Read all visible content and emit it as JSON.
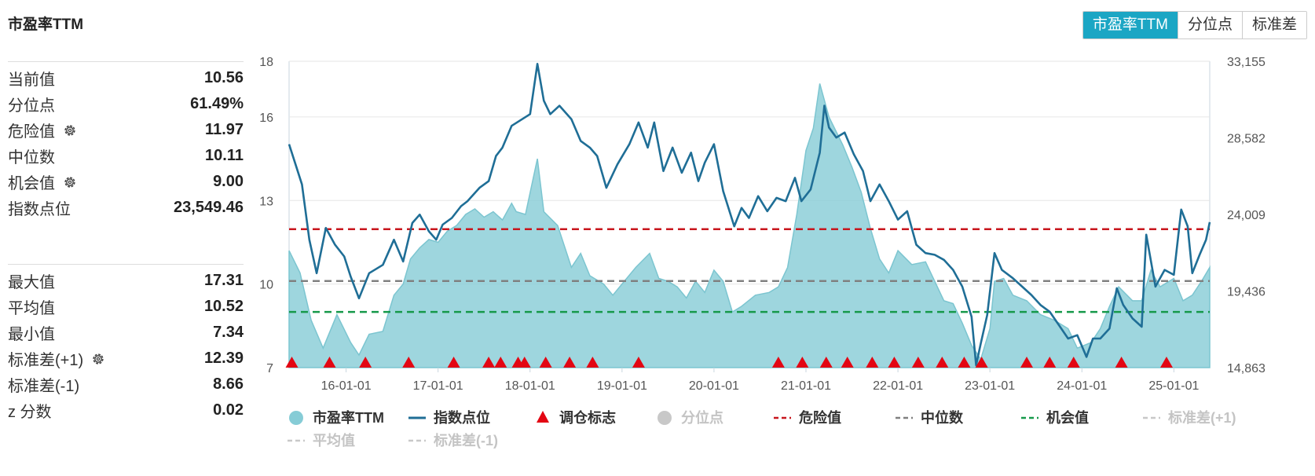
{
  "header": {
    "title": "市盈率TTM"
  },
  "tabs": [
    {
      "label": "市盈率TTM",
      "active": true
    },
    {
      "label": "分位点",
      "active": false
    },
    {
      "label": "标准差",
      "active": false
    }
  ],
  "stats_top": [
    {
      "label": "当前值",
      "value": "10.56",
      "gear": false
    },
    {
      "label": "分位点",
      "value": "61.49%",
      "gear": false
    },
    {
      "label": "危险值",
      "value": "11.97",
      "gear": true
    },
    {
      "label": "中位数",
      "value": "10.11",
      "gear": false
    },
    {
      "label": "机会值",
      "value": "9.00",
      "gear": true
    },
    {
      "label": "指数点位",
      "value": "23,549.46",
      "gear": false
    }
  ],
  "stats_bottom": [
    {
      "label": "最大值",
      "value": "17.31",
      "gear": false
    },
    {
      "label": "平均值",
      "value": "10.52",
      "gear": false
    },
    {
      "label": "最小值",
      "value": "7.34",
      "gear": false
    },
    {
      "label": "标准差(+1)",
      "value": "12.39",
      "gear": true
    },
    {
      "label": "标准差(-1)",
      "value": "8.66",
      "gear": false
    },
    {
      "label": "z 分数",
      "value": "0.02",
      "gear": false
    }
  ],
  "colors": {
    "area": "#86ccd6",
    "index_line": "#1f6e96",
    "danger": "#c8161d",
    "median": "#808080",
    "opportunity": "#16994a",
    "marker": "#e30613",
    "disabled": "#c8c8c8",
    "accent": "#1ba6c4"
  },
  "chart_data": {
    "type": "area+line",
    "x_tick_labels": [
      "16-01-01",
      "17-01-01",
      "18-01-01",
      "19-01-01",
      "20-01-01",
      "21-01-01",
      "22-01-01",
      "23-01-01",
      "24-01-01",
      "25-01-01"
    ],
    "x_tick_years": [
      2016,
      2017,
      2018,
      2019,
      2020,
      2021,
      2022,
      2023,
      2024,
      2025
    ],
    "x_range": [
      2015.38,
      2025.39
    ],
    "left_axis": {
      "ticks": [
        "18",
        "16",
        "13",
        "10",
        "7"
      ],
      "range": [
        7,
        18
      ]
    },
    "right_axis": {
      "ticks": [
        "33,155",
        "28,582",
        "24,009",
        "19,436",
        "14,863"
      ],
      "range": [
        14863,
        33155
      ]
    },
    "reference_lines": {
      "danger": 11.97,
      "median": 10.11,
      "opportunity": 9.0
    },
    "series_pe": {
      "name": "市盈率TTM",
      "points": [
        [
          2015.38,
          11.2
        ],
        [
          2015.5,
          10.4
        ],
        [
          2015.62,
          8.7
        ],
        [
          2015.75,
          7.7
        ],
        [
          2015.9,
          8.9
        ],
        [
          2016.05,
          7.9
        ],
        [
          2016.14,
          7.45
        ],
        [
          2016.25,
          8.2
        ],
        [
          2016.4,
          8.3
        ],
        [
          2016.52,
          9.6
        ],
        [
          2016.62,
          10.0
        ],
        [
          2016.7,
          10.9
        ],
        [
          2016.8,
          11.3
        ],
        [
          2016.9,
          11.6
        ],
        [
          2017.0,
          11.5
        ],
        [
          2017.1,
          11.9
        ],
        [
          2017.2,
          12.1
        ],
        [
          2017.3,
          12.5
        ],
        [
          2017.4,
          12.7
        ],
        [
          2017.5,
          12.4
        ],
        [
          2017.6,
          12.6
        ],
        [
          2017.7,
          12.3
        ],
        [
          2017.8,
          12.9
        ],
        [
          2017.85,
          12.6
        ],
        [
          2017.95,
          12.5
        ],
        [
          2018.08,
          14.5
        ],
        [
          2018.15,
          12.6
        ],
        [
          2018.3,
          12.1
        ],
        [
          2018.45,
          10.6
        ],
        [
          2018.55,
          11.1
        ],
        [
          2018.65,
          10.3
        ],
        [
          2018.8,
          10.0
        ],
        [
          2018.9,
          9.6
        ],
        [
          2019.0,
          10.0
        ],
        [
          2019.15,
          10.6
        ],
        [
          2019.3,
          11.1
        ],
        [
          2019.4,
          10.2
        ],
        [
          2019.5,
          10.1
        ],
        [
          2019.6,
          9.9
        ],
        [
          2019.7,
          9.5
        ],
        [
          2019.8,
          10.1
        ],
        [
          2019.9,
          9.7
        ],
        [
          2020.0,
          10.5
        ],
        [
          2020.1,
          10.1
        ],
        [
          2020.2,
          9.0
        ],
        [
          2020.3,
          9.2
        ],
        [
          2020.45,
          9.6
        ],
        [
          2020.6,
          9.7
        ],
        [
          2020.7,
          9.9
        ],
        [
          2020.8,
          10.6
        ],
        [
          2020.9,
          12.5
        ],
        [
          2021.0,
          14.8
        ],
        [
          2021.08,
          15.6
        ],
        [
          2021.15,
          17.2
        ],
        [
          2021.25,
          16.0
        ],
        [
          2021.4,
          15.0
        ],
        [
          2021.5,
          14.2
        ],
        [
          2021.6,
          13.3
        ],
        [
          2021.7,
          12.0
        ],
        [
          2021.8,
          10.9
        ],
        [
          2021.9,
          10.4
        ],
        [
          2022.0,
          11.2
        ],
        [
          2022.15,
          10.7
        ],
        [
          2022.3,
          10.8
        ],
        [
          2022.4,
          10.1
        ],
        [
          2022.5,
          9.4
        ],
        [
          2022.6,
          9.3
        ],
        [
          2022.7,
          8.6
        ],
        [
          2022.8,
          7.8
        ],
        [
          2022.9,
          7.3
        ],
        [
          2023.0,
          8.4
        ],
        [
          2023.05,
          10.1
        ],
        [
          2023.15,
          10.2
        ],
        [
          2023.25,
          9.6
        ],
        [
          2023.4,
          9.4
        ],
        [
          2023.55,
          8.9
        ],
        [
          2023.7,
          8.7
        ],
        [
          2023.85,
          8.4
        ],
        [
          2023.95,
          7.7
        ],
        [
          2024.1,
          7.9
        ],
        [
          2024.2,
          8.4
        ],
        [
          2024.3,
          9.2
        ],
        [
          2024.4,
          9.9
        ],
        [
          2024.55,
          9.4
        ],
        [
          2024.65,
          9.4
        ],
        [
          2024.75,
          10.5
        ],
        [
          2024.85,
          9.9
        ],
        [
          2025.0,
          10.2
        ],
        [
          2025.1,
          9.4
        ],
        [
          2025.2,
          9.6
        ],
        [
          2025.3,
          10.1
        ],
        [
          2025.39,
          10.6
        ]
      ]
    },
    "series_index": {
      "name": "指数点位",
      "points": [
        [
          2015.38,
          28200
        ],
        [
          2015.45,
          27000
        ],
        [
          2015.52,
          25800
        ],
        [
          2015.6,
          22500
        ],
        [
          2015.68,
          20500
        ],
        [
          2015.78,
          23200
        ],
        [
          2015.88,
          22200
        ],
        [
          2015.98,
          21500
        ],
        [
          2016.05,
          20300
        ],
        [
          2016.14,
          19000
        ],
        [
          2016.25,
          20500
        ],
        [
          2016.4,
          21000
        ],
        [
          2016.52,
          22500
        ],
        [
          2016.62,
          21200
        ],
        [
          2016.72,
          23500
        ],
        [
          2016.8,
          24000
        ],
        [
          2016.9,
          23000
        ],
        [
          2016.98,
          22500
        ],
        [
          2017.05,
          23400
        ],
        [
          2017.15,
          23800
        ],
        [
          2017.25,
          24500
        ],
        [
          2017.32,
          24800
        ],
        [
          2017.45,
          25600
        ],
        [
          2017.55,
          26000
        ],
        [
          2017.63,
          27500
        ],
        [
          2017.7,
          28000
        ],
        [
          2017.8,
          29300
        ],
        [
          2018.0,
          30000
        ],
        [
          2018.08,
          33000
        ],
        [
          2018.15,
          30800
        ],
        [
          2018.22,
          30000
        ],
        [
          2018.32,
          30500
        ],
        [
          2018.45,
          29700
        ],
        [
          2018.55,
          28400
        ],
        [
          2018.65,
          28000
        ],
        [
          2018.73,
          27500
        ],
        [
          2018.83,
          25600
        ],
        [
          2018.95,
          27000
        ],
        [
          2019.08,
          28200
        ],
        [
          2019.18,
          29500
        ],
        [
          2019.28,
          28000
        ],
        [
          2019.35,
          29500
        ],
        [
          2019.45,
          26600
        ],
        [
          2019.55,
          28000
        ],
        [
          2019.65,
          26500
        ],
        [
          2019.75,
          27700
        ],
        [
          2019.83,
          26000
        ],
        [
          2019.9,
          27100
        ],
        [
          2020.0,
          28200
        ],
        [
          2020.1,
          25400
        ],
        [
          2020.22,
          23300
        ],
        [
          2020.3,
          24400
        ],
        [
          2020.38,
          23800
        ],
        [
          2020.48,
          25100
        ],
        [
          2020.58,
          24200
        ],
        [
          2020.68,
          25000
        ],
        [
          2020.78,
          24800
        ],
        [
          2020.88,
          26200
        ],
        [
          2020.95,
          24800
        ],
        [
          2021.05,
          25500
        ],
        [
          2021.15,
          27700
        ],
        [
          2021.2,
          30500
        ],
        [
          2021.25,
          29200
        ],
        [
          2021.33,
          28600
        ],
        [
          2021.42,
          28900
        ],
        [
          2021.52,
          27600
        ],
        [
          2021.62,
          26600
        ],
        [
          2021.7,
          24800
        ],
        [
          2021.8,
          25800
        ],
        [
          2021.9,
          24800
        ],
        [
          2022.0,
          23700
        ],
        [
          2022.1,
          24200
        ],
        [
          2022.2,
          22200
        ],
        [
          2022.3,
          21700
        ],
        [
          2022.4,
          21600
        ],
        [
          2022.5,
          21300
        ],
        [
          2022.6,
          20700
        ],
        [
          2022.7,
          19700
        ],
        [
          2022.8,
          17900
        ],
        [
          2022.85,
          15000
        ],
        [
          2022.9,
          16300
        ],
        [
          2022.97,
          18000
        ],
        [
          2023.05,
          21700
        ],
        [
          2023.13,
          20700
        ],
        [
          2023.25,
          20200
        ],
        [
          2023.35,
          19700
        ],
        [
          2023.45,
          19200
        ],
        [
          2023.55,
          18600
        ],
        [
          2023.65,
          18200
        ],
        [
          2023.75,
          17400
        ],
        [
          2023.85,
          16600
        ],
        [
          2023.95,
          16800
        ],
        [
          2024.05,
          15500
        ],
        [
          2024.12,
          16600
        ],
        [
          2024.2,
          16600
        ],
        [
          2024.3,
          17200
        ],
        [
          2024.38,
          19600
        ],
        [
          2024.45,
          18600
        ],
        [
          2024.55,
          17800
        ],
        [
          2024.65,
          17300
        ],
        [
          2024.7,
          22800
        ],
        [
          2024.8,
          19700
        ],
        [
          2024.9,
          20700
        ],
        [
          2025.0,
          20400
        ],
        [
          2025.08,
          24300
        ],
        [
          2025.15,
          23300
        ],
        [
          2025.2,
          20500
        ],
        [
          2025.28,
          21600
        ],
        [
          2025.35,
          22500
        ],
        [
          2025.39,
          23549
        ]
      ]
    },
    "markers": {
      "name": "调仓标志",
      "x": [
        2015.41,
        2015.82,
        2016.21,
        2016.68,
        2017.17,
        2017.55,
        2017.68,
        2017.87,
        2017.94,
        2018.17,
        2018.43,
        2018.68,
        2019.18,
        2020.7,
        2020.96,
        2021.22,
        2021.45,
        2021.72,
        2021.96,
        2022.22,
        2022.48,
        2022.72,
        2022.91,
        2023.4,
        2023.65,
        2023.91,
        2024.43,
        2024.92
      ]
    },
    "legend": [
      {
        "name": "市盈率TTM",
        "symbol": "circle",
        "enabled": true
      },
      {
        "name": "指数点位",
        "symbol": "line",
        "enabled": true
      },
      {
        "name": "调仓标志",
        "symbol": "triangle",
        "enabled": true
      },
      {
        "name": "分位点",
        "symbol": "circle",
        "enabled": false
      },
      {
        "name": "危险值",
        "symbol": "dash",
        "enabled": true
      },
      {
        "name": "中位数",
        "symbol": "dash",
        "enabled": true
      },
      {
        "name": "机会值",
        "symbol": "dash",
        "enabled": true
      },
      {
        "name": "标准差(+1)",
        "symbol": "dash",
        "enabled": false
      },
      {
        "name": "平均值",
        "symbol": "dash",
        "enabled": false
      },
      {
        "name": "标准差(-1)",
        "symbol": "dash",
        "enabled": false
      }
    ]
  }
}
